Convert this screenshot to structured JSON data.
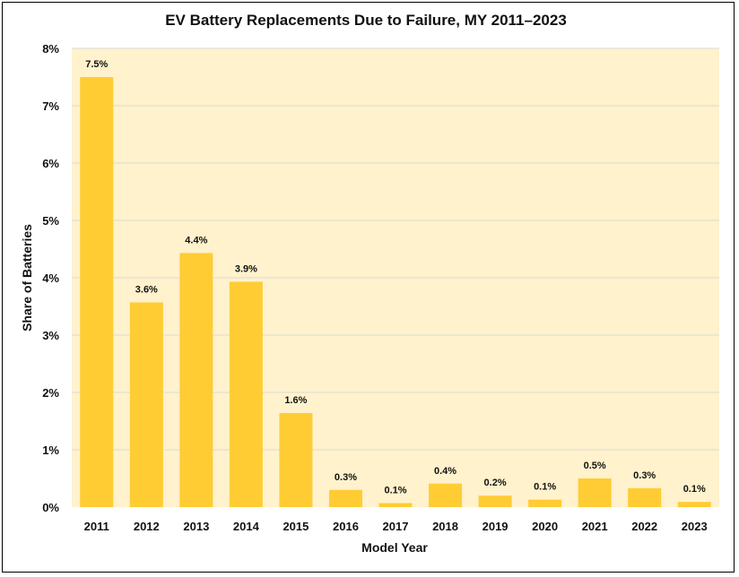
{
  "chart_data": {
    "type": "bar",
    "title": "EV Battery Replacements Due to Failure, MY 2011–2023",
    "xlabel": "Model Year",
    "ylabel": "Share of Batteries",
    "categories": [
      "2011",
      "2012",
      "2013",
      "2014",
      "2015",
      "2016",
      "2017",
      "2018",
      "2019",
      "2020",
      "2021",
      "2022",
      "2023"
    ],
    "values": [
      7.5,
      3.6,
      4.4,
      3.9,
      1.6,
      0.3,
      0.1,
      0.4,
      0.2,
      0.1,
      0.5,
      0.3,
      0.1
    ],
    "bar_heights": [
      7.5,
      3.57,
      4.43,
      3.93,
      1.64,
      0.3,
      0.07,
      0.41,
      0.2,
      0.13,
      0.5,
      0.33,
      0.09
    ],
    "data_labels": [
      "7.5%",
      "3.6%",
      "4.4%",
      "3.9%",
      "1.6%",
      "0.3%",
      "0.1%",
      "0.4%",
      "0.2%",
      "0.1%",
      "0.5%",
      "0.3%",
      "0.1%"
    ],
    "yticks": [
      0,
      1,
      2,
      3,
      4,
      5,
      6,
      7,
      8
    ],
    "ytick_labels": [
      "0%",
      "1%",
      "2%",
      "3%",
      "4%",
      "5%",
      "6%",
      "7%",
      "8%"
    ],
    "ylim": [
      0,
      8
    ],
    "grid": true,
    "colors": {
      "bar": "#FFCC33",
      "plot_bg": "#FFF2CC",
      "grid": "#D9D9D9"
    }
  }
}
